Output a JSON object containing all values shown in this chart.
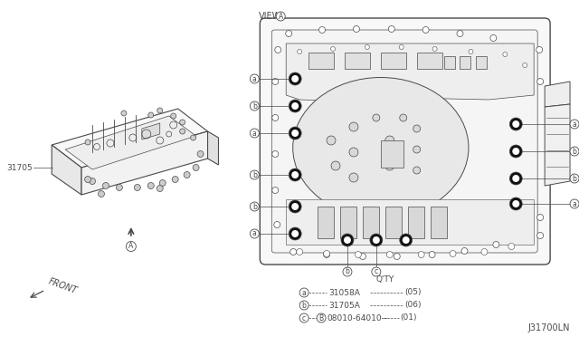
{
  "bg_color": "#ffffff",
  "line_color": "#4a4a4a",
  "fig_width": 6.4,
  "fig_height": 3.72,
  "dpi": 100,
  "part_number_left": "31705",
  "front_label": "FRONT",
  "arrow_label": "A",
  "view_label": "VIEW",
  "view_circle_label": "A",
  "qty_label": "Q'TY",
  "legend_a_part": "31058A",
  "legend_a_qty": "(05)",
  "legend_b_part": "31705A",
  "legend_b_qty": "(06)",
  "legend_c_part": "08010-64010--",
  "legend_c_qty": "(01)",
  "diagram_id": "J31700LN"
}
